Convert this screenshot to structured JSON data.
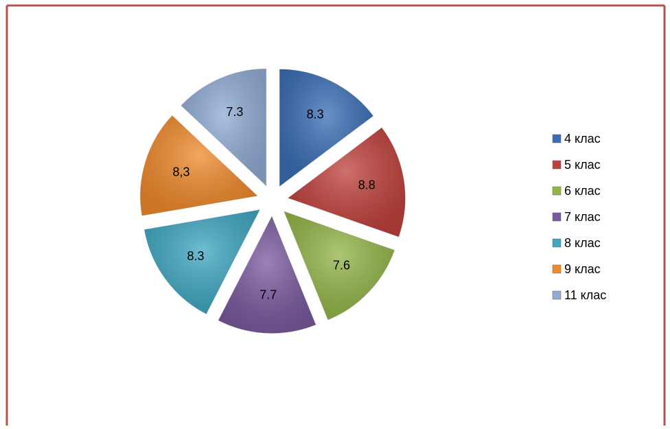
{
  "chart_data": {
    "type": "pie",
    "categories": [
      "4 клас",
      "5 клас",
      "6 клас",
      "7 клас",
      "8 клас",
      "9 клас",
      "11 клас"
    ],
    "values": [
      8.3,
      8.8,
      7.6,
      7.7,
      8.3,
      8.3,
      7.3
    ],
    "value_labels": [
      "8.3",
      "8.8",
      "7.6",
      "7.7",
      "8.3",
      "8,3",
      "7.3"
    ],
    "colors": [
      "#3a6db5",
      "#c0413c",
      "#93b548",
      "#7a5a9e",
      "#3fa7c1",
      "#f08a2c",
      "#90acd6"
    ],
    "legend": "right"
  }
}
